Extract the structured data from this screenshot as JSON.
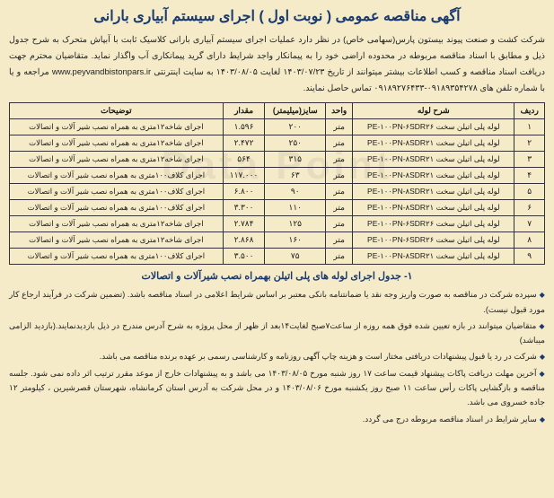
{
  "header": "آگهی مناقصه عمومی ( نوبت اول ) اجرای سیستم آبیاری بارانی",
  "intro": "شرکت کشت و صنعت پیوند بیستون پارس(سهامی خاص) در نظر دارد عملیات اجرای سیستم آبیاری بارانی کلاسیک ثابت با آبپاش متحرک به شرح جدول ذیل و مطابق با اسناد مناقصه مربوطه در محدوده اراضی خود را به پیمانکار واجد شرایط دارای گرید پیمانکاری آب واگذار نماید. متقاضیان محترم جهت دریافت اسناد مناقصه و کسب اطلاعات بیشتر میتوانند از تاریخ ۱۴۰۳/۰۷/۲۳ لغایت ۱۴۰۳/۰۸/۰۵ به سایت اینترنتی www.peyvandbistonpars.ir مراجعه و یا با شماره تلفن های ۰۹۱۸۹۳۵۴۲۷۸-۰۹۱۸۹۲۷۶۴۳۳ تماس حاصل نمایند.",
  "columns": {
    "c1": "ردیف",
    "c2": "شرح لوله",
    "c3": "واحد",
    "c4": "سایز(میلیمتر)",
    "c5": "مقدار",
    "c6": "توضیحات"
  },
  "rows": [
    {
      "n": "۱",
      "d": "لوله پلی اتیلن سخت PE-۱۰۰PN-۶SDR۲۶",
      "u": "متر",
      "s": "۲۰۰",
      "q": "۱.۵۹۶",
      "t": "اجرای شاخه۱۲متری به همراه نصب شیر آلات و اتصالات"
    },
    {
      "n": "۲",
      "d": "لوله پلی اتیلن سخت PE-۱۰۰PN-۸SDR۲۱",
      "u": "متر",
      "s": "۲۵۰",
      "q": "۲.۴۷۲",
      "t": "اجرای شاخه۱۲متری به همراه نصب شیر آلات و اتصالات"
    },
    {
      "n": "۳",
      "d": "لوله پلی اتیلن سخت PE-۱۰۰PN-۸SDR۲۱",
      "u": "متر",
      "s": "۳۱۵",
      "q": "۵۶۴",
      "t": "اجرای شاخه۱۲متری به همراه نصب شیر آلات و اتصالات"
    },
    {
      "n": "۴",
      "d": "لوله پلی اتیلن سخت PE-۱۰۰PN-۸SDR۲۱",
      "u": "متر",
      "s": "۶۳",
      "q": "۱۱۷.۰۰۰",
      "t": "اجرای کلاف۱۰۰متری به همراه نصب شیر آلات و اتصالات"
    },
    {
      "n": "۵",
      "d": "لوله پلی اتیلن سخت PE-۱۰۰PN-۸SDR۲۱",
      "u": "متر",
      "s": "۹۰",
      "q": "۶.۸۰۰",
      "t": "اجرای کلاف۱۰۰متری به همراه نصب شیر آلات و اتصالات"
    },
    {
      "n": "۶",
      "d": "لوله پلی اتیلن سخت PE-۱۰۰PN-۸SDR۲۱",
      "u": "متر",
      "s": "۱۱۰",
      "q": "۳.۳۰۰",
      "t": "اجرای کلاف۱۰۰متری به همراه نصب شیر آلات و اتصالات"
    },
    {
      "n": "۷",
      "d": "لوله پلی اتیلن سخت PE-۱۰۰PN-۶SDR۲۶",
      "u": "متر",
      "s": "۱۲۵",
      "q": "۲.۷۸۴",
      "t": "اجرای شاخه۱۲متری به همراه نصب شیر آلات و اتصالات"
    },
    {
      "n": "۸",
      "d": "لوله پلی اتیلن سخت PE-۱۰۰PN-۶SDR۲۶",
      "u": "متر",
      "s": "۱۶۰",
      "q": "۲.۸۶۸",
      "t": "اجرای شاخه۱۲متری به همراه نصب شیر آلات و اتصالات"
    },
    {
      "n": "۹",
      "d": "لوله پلی اتیلن سخت PE-۱۰۰PN-۸SDR۲۱",
      "u": "متر",
      "s": "۷۵",
      "q": "۳.۵۰۰",
      "t": "اجرای کلاف۱۰۰متری به همراه نصب شیر آلات و اتصالات"
    }
  ],
  "caption": "۱- جدول اجرای لوله های پلی اتیلن بهمراه نصب شیرآلات و اتصالات",
  "bullets": {
    "b1": "سپرده شرکت در مناقصه به صورت واریز وجه نقد یا ضمانتنامه بانکی معتبر بر اساس شرایط اعلامی در اسناد مناقصه باشد. (تضمین شرکت در فرآیند ارجاع کار مورد قبول نیست).",
    "b2": "متقاضیان میتوانند در بازه تعیین شده فوق همه روزه از ساعت۷صبح لغایت۱۴بعد از ظهر از محل پروژه به شرح آدرس مندرج در ذیل بازدیدنمایند.(بازدید الزامی میباشد)",
    "b3": "شرکت در رد یا قبول پیشنهادات دریافتی مختار است و هزینه چاپ آگهی روزنامه و کارشناسی رسمی بر عهده برنده مناقصه می باشد.",
    "b4": "آخرین مهلت دریافت پاکات پیشنهاد قیمت ساعت ۱۷ روز شنبه مورخ ۱۴۰۳/۰۸/۰۵ می باشد و به پیشنهادات خارج از موعد مقرر ترتیب اثر داده نمی شود. جلسه مناقصه و بازگشایی پاکات رأس ساعت ۱۱ صبح روز یکشنبه مورخ ۱۴۰۳/۰۸/۰۶ و در محل شرکت به آدرس استان کرمانشاه، شهرستان قصرشیرین ، کیلومتر ۱۲ جاده خسروی می باشد.",
    "b5": "سایر شرایط در اسناد مناقصه مربوطه درج می گردد."
  },
  "watermark": "Data Point"
}
